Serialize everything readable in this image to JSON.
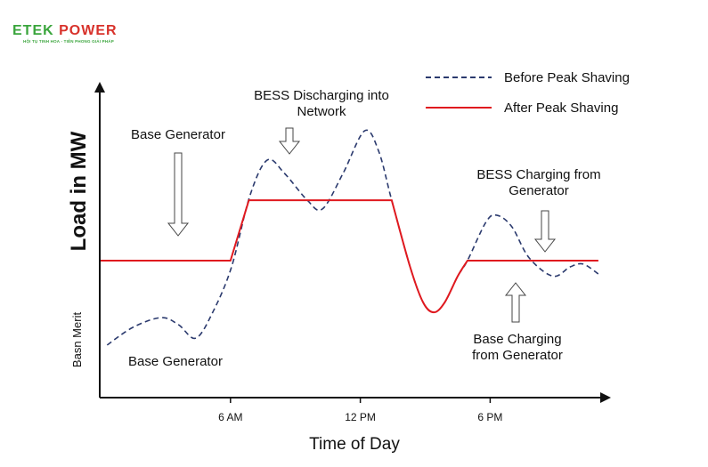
{
  "logo": {
    "brand_left": "ETEK",
    "brand_right": "POWER",
    "tagline": "HỘI TỤ TINH HOA - TIÊN PHONG GIẢI PHÁP"
  },
  "chart_data": {
    "type": "line",
    "title": "",
    "xlabel": "Time of Day",
    "ylabel": "Load in MW",
    "ylabel_secondary": "Basn Merit",
    "xlim": [
      0,
      23.5
    ],
    "ylim": [
      0,
      100
    ],
    "x_ticks": [
      {
        "value": 6,
        "label": "6 AM"
      },
      {
        "value": 12,
        "label": "12 PM"
      },
      {
        "value": 18,
        "label": "6 PM"
      }
    ],
    "grid": false,
    "legend_position": "top-right",
    "series": [
      {
        "name": "Before Peak Shaving",
        "style": "dashed",
        "color": "#2b3a6e",
        "points": [
          [
            0.3,
            16.9
          ],
          [
            1.5,
            22.6
          ],
          [
            2.8,
            25.7
          ],
          [
            3.6,
            23.4
          ],
          [
            4.4,
            19.1
          ],
          [
            5.2,
            27.7
          ],
          [
            6.05,
            42
          ],
          [
            6.9,
            64.9
          ],
          [
            7.7,
            76.3
          ],
          [
            8.5,
            72
          ],
          [
            9.55,
            63.4
          ],
          [
            10.25,
            60.6
          ],
          [
            11.2,
            72
          ],
          [
            12.2,
            85.7
          ],
          [
            12.85,
            79.1
          ],
          [
            13.45,
            63.4
          ],
          [
            14.3,
            42
          ],
          [
            14.9,
            30.6
          ],
          [
            15.4,
            27.4
          ],
          [
            15.9,
            30.6
          ],
          [
            16.5,
            39
          ],
          [
            16.95,
            44
          ],
          [
            17.8,
            56.3
          ],
          [
            18.3,
            58.6
          ],
          [
            19,
            54.9
          ],
          [
            19.8,
            44.9
          ],
          [
            20.9,
            39
          ],
          [
            21.7,
            42
          ],
          [
            22.3,
            42.9
          ],
          [
            23,
            39.7
          ]
        ]
      },
      {
        "name": "After Peak Shaving",
        "style": "solid",
        "color": "#e0191f",
        "points": [
          [
            0,
            44
          ],
          [
            6,
            44
          ],
          [
            6.85,
            63.4
          ],
          [
            13.45,
            63.4
          ],
          [
            14.3,
            42
          ],
          [
            14.9,
            30.6
          ],
          [
            15.4,
            27.4
          ],
          [
            15.9,
            30.6
          ],
          [
            16.5,
            39
          ],
          [
            16.95,
            44
          ],
          [
            23,
            44
          ]
        ]
      }
    ],
    "annotations": [
      {
        "text": [
          "Base Generator"
        ],
        "arrow": "down"
      },
      {
        "text": [
          "BESS Discharging into",
          "Network"
        ],
        "arrow": "down"
      },
      {
        "text": [
          "BESS Charging from",
          "Generator"
        ],
        "arrow": "down"
      },
      {
        "text": [
          "Base Charging",
          "from Generator"
        ],
        "arrow": "up"
      },
      {
        "text": [
          "Base Generator"
        ],
        "arrow": "none"
      }
    ]
  }
}
